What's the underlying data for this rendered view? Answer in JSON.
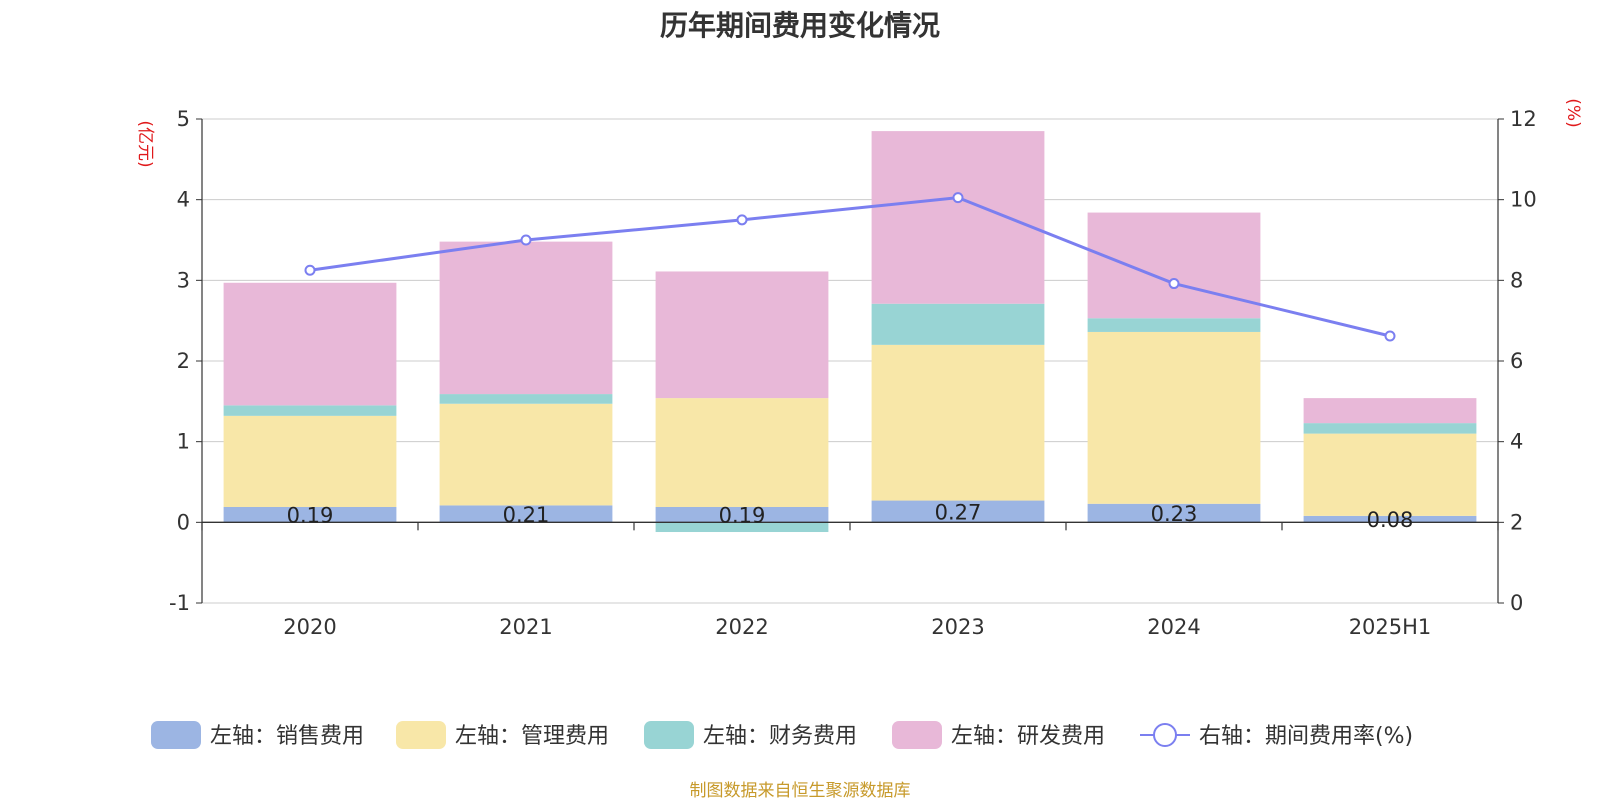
{
  "title": "历年期间费用变化情况",
  "footer": "制图数据来自恒生聚源数据库",
  "chart_data": {
    "type": "bar",
    "stacked": true,
    "categories": [
      "2020",
      "2021",
      "2022",
      "2023",
      "2024",
      "2025H1"
    ],
    "left_axis": {
      "unit": "(亿元)",
      "ylim": [
        -1,
        5
      ],
      "ticks": [
        "-1",
        "0",
        "1",
        "2",
        "3",
        "4",
        "5"
      ]
    },
    "right_axis": {
      "unit": "(%)",
      "ylim": [
        0,
        12
      ],
      "ticks": [
        "0",
        "2",
        "4",
        "6",
        "8",
        "10",
        "12"
      ]
    },
    "grid": true,
    "legend_position": "bottom",
    "series": [
      {
        "name": "左轴：销售费用",
        "type": "bar",
        "axis": "left",
        "color": "#9cb5e3",
        "values": [
          0.19,
          0.21,
          0.19,
          0.27,
          0.23,
          0.08
        ],
        "labels": [
          "0.19",
          "0.21",
          "0.19",
          "0.27",
          "0.23",
          "0.08"
        ]
      },
      {
        "name": "左轴：管理费用",
        "type": "bar",
        "axis": "left",
        "color": "#f8e7a8",
        "values": [
          1.13,
          1.26,
          1.35,
          1.93,
          2.13,
          1.02
        ]
      },
      {
        "name": "左轴：财务费用",
        "type": "bar",
        "axis": "left",
        "color": "#98d4d4",
        "values": [
          0.13,
          0.12,
          -0.12,
          0.51,
          0.17,
          0.13
        ]
      },
      {
        "name": "左轴：研发费用",
        "type": "bar",
        "axis": "left",
        "color": "#e8b8d8",
        "values": [
          1.52,
          1.89,
          1.57,
          2.14,
          1.31,
          0.31
        ]
      },
      {
        "name": "右轴：期间费用率(%)",
        "type": "line",
        "axis": "right",
        "color": "#7b7ff0",
        "values": [
          8.25,
          9.0,
          9.5,
          10.05,
          7.92,
          6.62
        ]
      }
    ]
  }
}
